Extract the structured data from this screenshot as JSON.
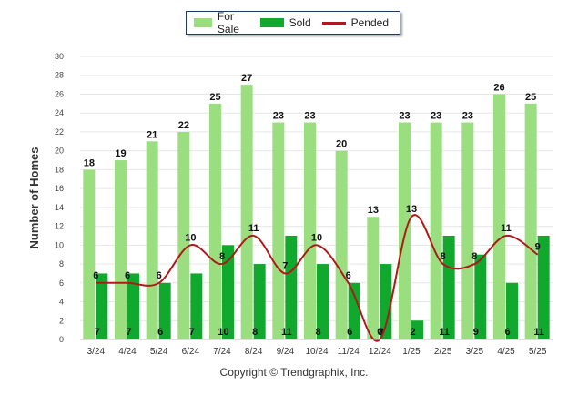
{
  "legend": {
    "for_sale": "For Sale",
    "sold": "Sold",
    "pended": "Pended"
  },
  "colors": {
    "for_sale": "#9ade80",
    "sold": "#11a82e",
    "pended": "#b01919"
  },
  "copyright": "Copyright © Trendgraphix, Inc.",
  "chart_data": {
    "type": "bar",
    "ylabel": "Number of Homes",
    "xlabel": "",
    "ylim": [
      0,
      30
    ],
    "yticks": [
      0,
      2,
      4,
      6,
      8,
      10,
      12,
      14,
      16,
      18,
      20,
      22,
      24,
      26,
      28,
      30
    ],
    "grid": true,
    "legend_position": "top-center",
    "categories": [
      "3/24",
      "4/24",
      "5/24",
      "6/24",
      "7/24",
      "8/24",
      "9/24",
      "10/24",
      "11/24",
      "12/24",
      "1/25",
      "2/25",
      "3/25",
      "4/25",
      "5/25"
    ],
    "series": [
      {
        "name": "For Sale",
        "kind": "bar",
        "values": [
          18,
          19,
          21,
          22,
          25,
          27,
          23,
          23,
          20,
          13,
          23,
          23,
          23,
          26,
          25
        ]
      },
      {
        "name": "Sold",
        "kind": "bar",
        "values": [
          7,
          7,
          6,
          7,
          10,
          8,
          11,
          8,
          6,
          8,
          2,
          11,
          9,
          6,
          11
        ]
      },
      {
        "name": "Pended",
        "kind": "line",
        "values": [
          6,
          6,
          6,
          10,
          8,
          11,
          7,
          10,
          6,
          0,
          13,
          8,
          8,
          11,
          9
        ]
      }
    ]
  }
}
